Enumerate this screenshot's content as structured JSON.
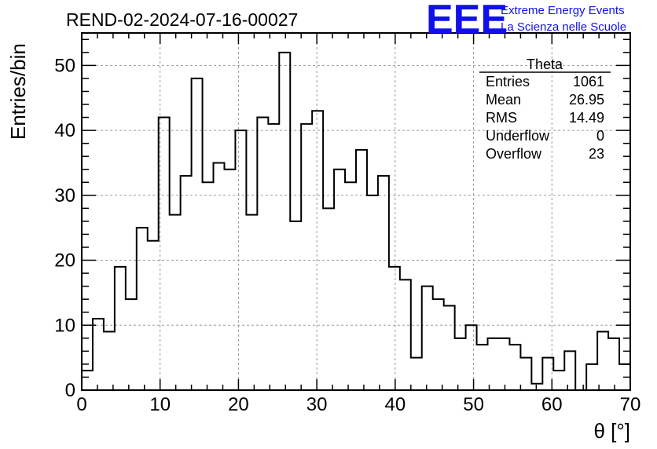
{
  "title": "REND-02-2024-07-16-00027",
  "logo": {
    "mark": "EEE",
    "line1": "Extreme Energy Events",
    "line2": "La Scienza nelle Scuole",
    "color": "#1010ee"
  },
  "stats": {
    "name": "Theta",
    "rows": [
      {
        "label": "Entries",
        "value": "1061"
      },
      {
        "label": "Mean",
        "value": "26.95"
      },
      {
        "label": "RMS",
        "value": "14.49"
      },
      {
        "label": "Underflow",
        "value": "0"
      },
      {
        "label": "Overflow",
        "value": "23"
      }
    ]
  },
  "chart_data": {
    "type": "bar",
    "style": "step-histogram",
    "xlabel": "θ [°]",
    "ylabel": "Entries/bin",
    "xlim": [
      0,
      70
    ],
    "ylim": [
      0,
      55
    ],
    "bin_width": 1.4,
    "grid": true,
    "xticks": [
      0,
      10,
      20,
      30,
      40,
      50,
      60,
      70
    ],
    "yticks": [
      0,
      10,
      20,
      30,
      40,
      50
    ],
    "values": [
      3,
      11,
      9,
      19,
      14,
      25,
      23,
      42,
      27,
      33,
      48,
      32,
      35,
      34,
      40,
      27,
      42,
      41,
      52,
      26,
      41,
      43,
      28,
      34,
      32,
      37,
      30,
      33,
      19,
      17,
      5,
      16,
      14,
      13,
      8,
      10,
      7,
      8,
      8,
      7,
      5,
      1,
      5,
      3,
      6,
      0,
      4,
      9,
      8,
      4
    ],
    "line_color": "#000000"
  }
}
